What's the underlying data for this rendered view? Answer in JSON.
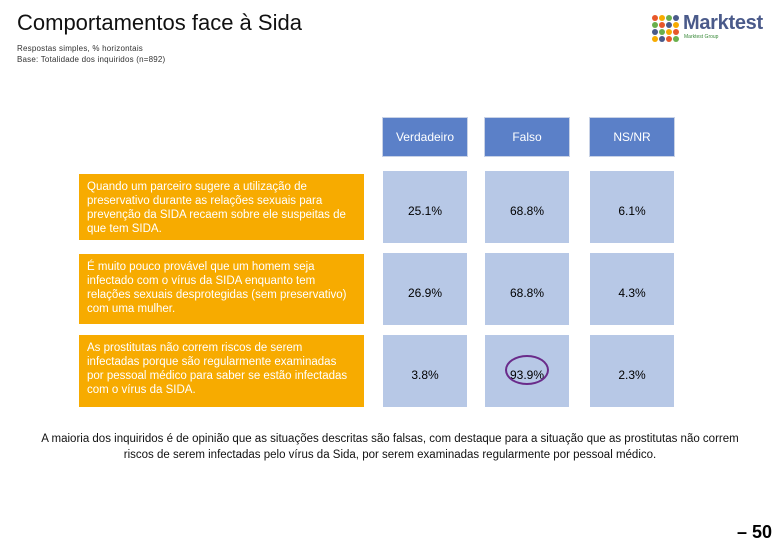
{
  "title": "Comportamentos face à Sida",
  "subtitle_lines": [
    "Respostas simples, % horizontais",
    "Base: Totalidade dos inquiridos (n=892)"
  ],
  "logo": {
    "name": "Marktest",
    "tagline": "Marktest Group",
    "colors": [
      "#e8572a",
      "#f7ab00",
      "#6ab04c",
      "#4a5a8a"
    ]
  },
  "columns": [
    "Verdadeiro",
    "Falso",
    "NS/NR"
  ],
  "rows": [
    {
      "label": "Quando um parceiro sugere a utilização de preservativo durante as relações sexuais para prevenção da SIDA recaem sobre ele suspeitas de que tem SIDA.",
      "values": [
        "25.1%",
        "68.8%",
        "6.1%"
      ]
    },
    {
      "label": "É muito pouco provável que um homem seja infectado com o vírus da SIDA enquanto tem relações sexuais desprotegidas (sem preservativo) com uma mulher.",
      "values": [
        "26.9%",
        "68.8%",
        "4.3%"
      ]
    },
    {
      "label": "As prostitutas não correm riscos de serem infectadas porque são regularmente examinadas por pessoal médico para saber se estão infectadas com o vírus da SIDA.",
      "values": [
        "3.8%",
        "93.9%",
        "2.3%"
      ]
    }
  ],
  "conclusion": "A maioria dos inquiridos é de opinião que as situações descritas são falsas, com destaque para a situação que as prostitutas não correm riscos de serem infectadas pelo vírus da Sida, por serem examinadas regularmente por pessoal médico.",
  "page_number": "– 50",
  "colors": {
    "header": "#5b80c8",
    "cell": "#b7c8e6",
    "label": "#f7ab00",
    "highlight": "#6a2b8a"
  }
}
